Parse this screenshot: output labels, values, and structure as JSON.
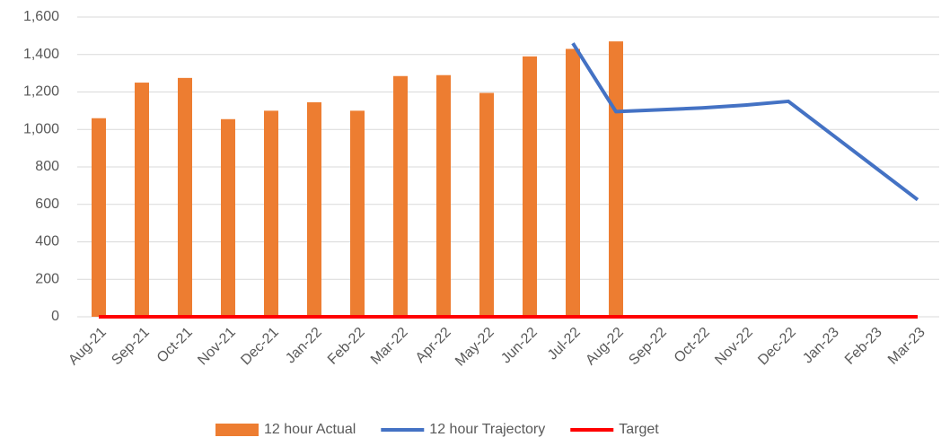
{
  "chart_data": {
    "type": "bar_line",
    "categories": [
      "Aug-21",
      "Sep-21",
      "Oct-21",
      "Nov-21",
      "Dec-21",
      "Jan-22",
      "Feb-22",
      "Mar-22",
      "Apr-22",
      "May-22",
      "Jun-22",
      "Jul-22",
      "Aug-22",
      "Sep-22",
      "Oct-22",
      "Nov-22",
      "Dec-22",
      "Jan-23",
      "Feb-23",
      "Mar-23"
    ],
    "series": [
      {
        "name": "12 hour Actual",
        "type": "bar",
        "color": "#ed7d31",
        "values": [
          1060,
          1250,
          1275,
          1055,
          1100,
          1145,
          1100,
          1285,
          1290,
          1195,
          1390,
          1430,
          1470,
          null,
          null,
          null,
          null,
          null,
          null,
          null
        ]
      },
      {
        "name": "12 hour Trajectory",
        "type": "line",
        "color": "#4472c4",
        "values": [
          null,
          null,
          null,
          null,
          null,
          null,
          null,
          null,
          null,
          null,
          null,
          1460,
          1095,
          1105,
          1115,
          1130,
          1150,
          975,
          800,
          625
        ]
      },
      {
        "name": "Target",
        "type": "line",
        "color": "#ff0000",
        "values": [
          0,
          0,
          0,
          0,
          0,
          0,
          0,
          0,
          0,
          0,
          0,
          0,
          0,
          0,
          0,
          0,
          0,
          0,
          0,
          0
        ]
      }
    ],
    "ylim": [
      0,
      1600
    ],
    "yticks": [
      0,
      200,
      400,
      600,
      800,
      {
        "value": 1000,
        "label": "1,000"
      },
      {
        "value": 1200,
        "label": "1,200"
      },
      {
        "value": 1400,
        "label": "1,400"
      },
      {
        "value": 1600,
        "label": "1,600"
      }
    ],
    "grid": true,
    "legend": "bottom"
  }
}
